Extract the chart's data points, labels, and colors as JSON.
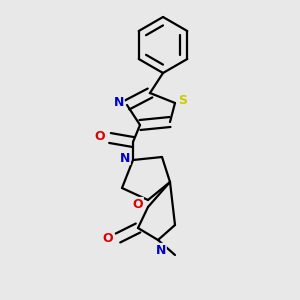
{
  "bg_color": "#e8e8e8",
  "bond_color": "#000000",
  "n_color": "#0000cc",
  "o_color": "#dd0000",
  "s_color": "#cccc00",
  "lw": 1.6,
  "dbo": 0.018,
  "xlim": [
    0,
    300
  ],
  "ylim": [
    0,
    300
  ]
}
